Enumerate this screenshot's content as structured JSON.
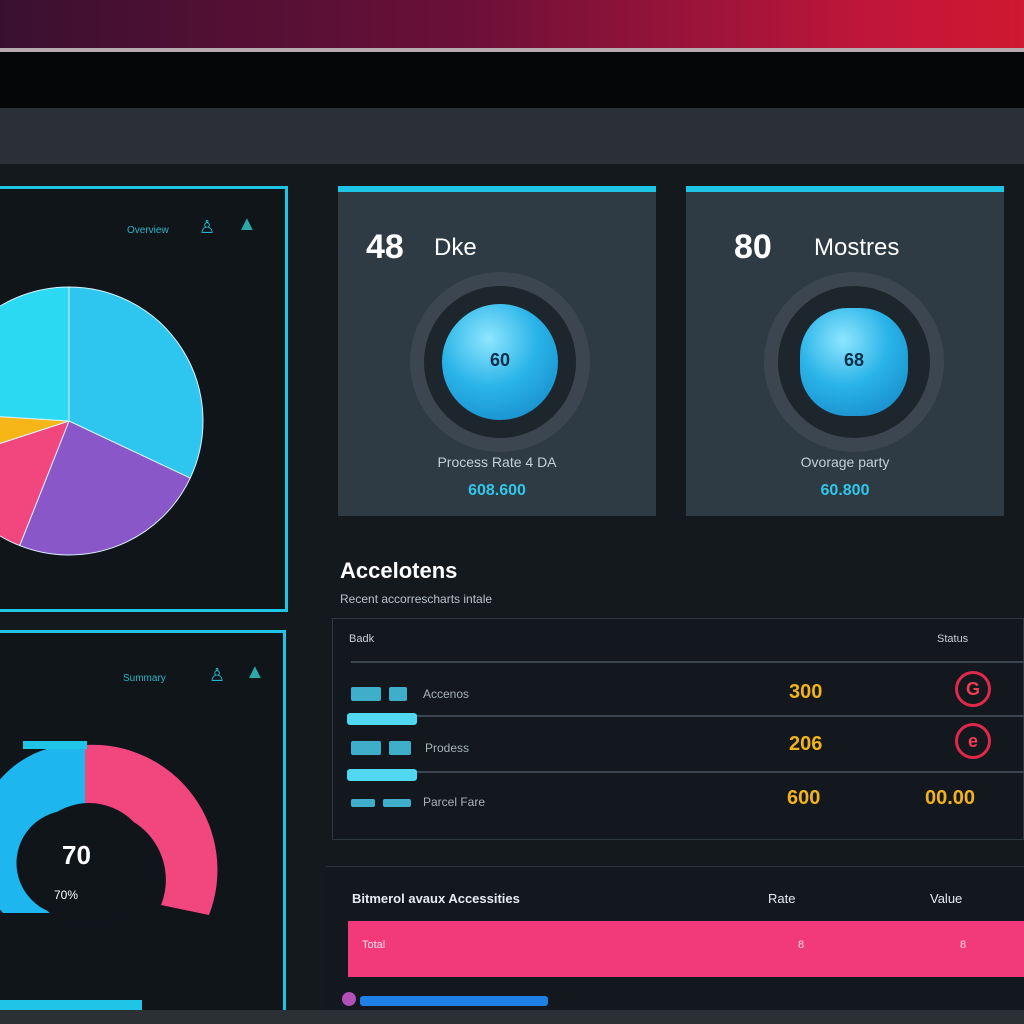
{
  "window": {
    "title": ""
  },
  "colors": {
    "accent": "#1ec5e6",
    "pink": "#f23a7b",
    "amber": "#f2b21c",
    "danger": "#e2284a"
  },
  "left_panels": {
    "top": {
      "label": "Overview",
      "icons": [
        "person-icon",
        "droplet-icon"
      ],
      "pie": {
        "type": "pie",
        "values": [
          32,
          24,
          14,
          6,
          24
        ],
        "colors": [
          "#2ec6ef",
          "#8a57c8",
          "#f2467f",
          "#f7b617",
          "#2bd9f2"
        ]
      }
    },
    "bottom": {
      "label": "Summary",
      "icons": [
        "person-icon",
        "bell-icon"
      ],
      "gauge": {
        "value": "70",
        "caption": "70%"
      }
    }
  },
  "stat_cards": [
    {
      "number": "48",
      "word": "Dke",
      "inner": "60",
      "caption": "Process Rate 4 DA",
      "value": "608.600"
    },
    {
      "number": "80",
      "word": "Mostres",
      "inner": "68",
      "caption": "Ovorage party",
      "value": "60.800"
    }
  ],
  "activities": {
    "title": "Accelotens",
    "subtitle": "Recent accorrescharts intale",
    "columns": [
      "Badk",
      "Status"
    ],
    "rows": [
      {
        "label": "Accenos",
        "value": "300",
        "badge": "G"
      },
      {
        "label": "Prodess",
        "value": "206",
        "badge": "e"
      },
      {
        "label": "Parcel Fare",
        "value": "600",
        "badge_text": "00.00"
      }
    ]
  },
  "summary_table": {
    "head": "Bitmerol avaux Accessities",
    "col2": "Rate",
    "col3": "Value",
    "pink_label": "Total",
    "pink_col2": "8",
    "pink_col3": "8"
  }
}
